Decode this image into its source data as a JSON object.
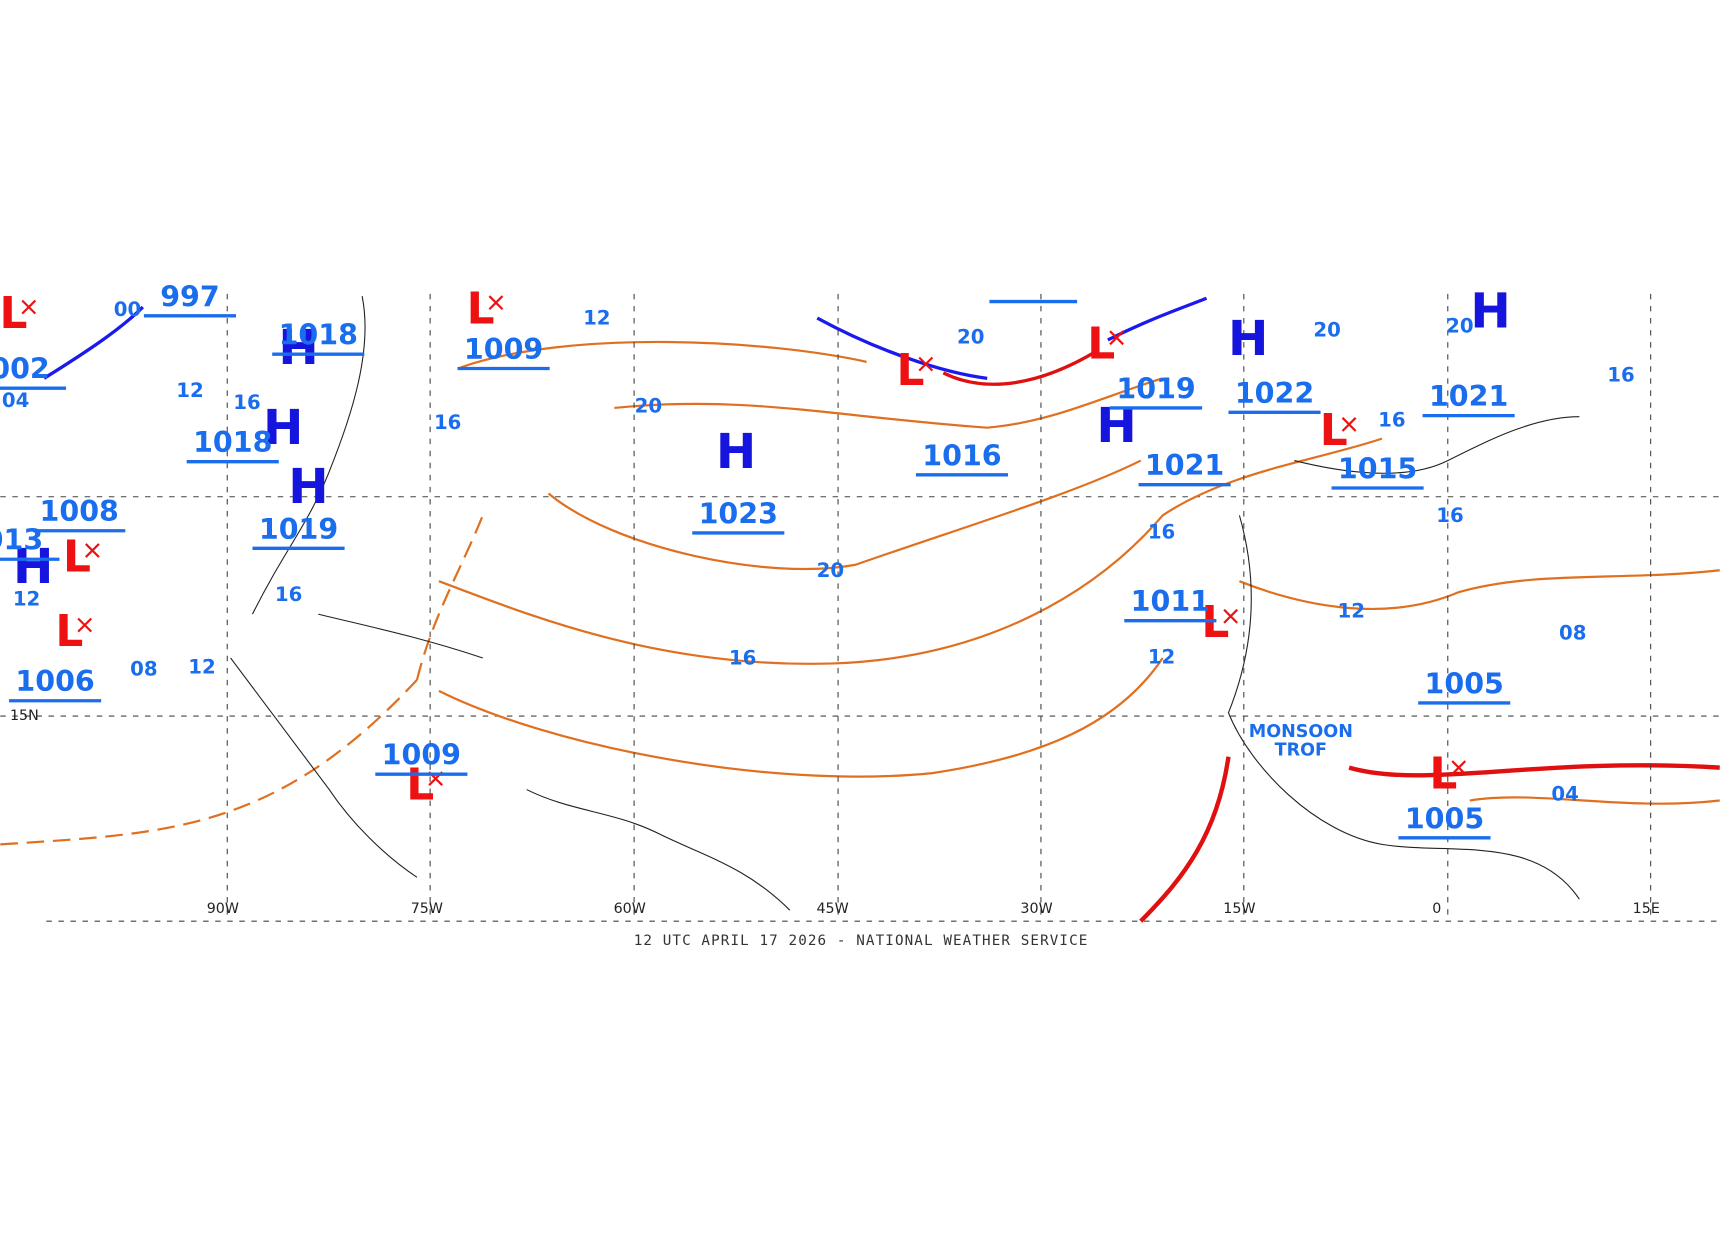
{
  "title": "12 UTC APRIL 17 2026 - NATIONAL WEATHER SERVICE",
  "latitude_label": "15N",
  "longitudes": [
    "90W",
    "75W",
    "60W",
    "45W",
    "30W",
    "15W",
    "0",
    "15E"
  ],
  "high_centers": [
    "H",
    "H",
    "H",
    "H",
    "H",
    "H",
    "H",
    "H"
  ],
  "low_centers": [
    "L",
    "L",
    "L",
    "L",
    "L",
    "L",
    "L",
    "L",
    "L",
    "L"
  ],
  "pressure_labels": [
    "997",
    "1018",
    "1009",
    "002",
    "1018",
    "1008",
    "1019",
    "013",
    "1006",
    "1009",
    "1023",
    "1016",
    "1019",
    "1022",
    "1021",
    "1015",
    "1021",
    "1011",
    "1005",
    "1005"
  ],
  "isobar_labels": [
    "12",
    "12",
    "12",
    "12",
    "12",
    "12",
    "16",
    "16",
    "16",
    "16",
    "16",
    "16",
    "16",
    "16",
    "20",
    "20",
    "20",
    "20",
    "20",
    "08",
    "08",
    "04",
    "00",
    "04"
  ],
  "annotation": "MONSOON TROF"
}
